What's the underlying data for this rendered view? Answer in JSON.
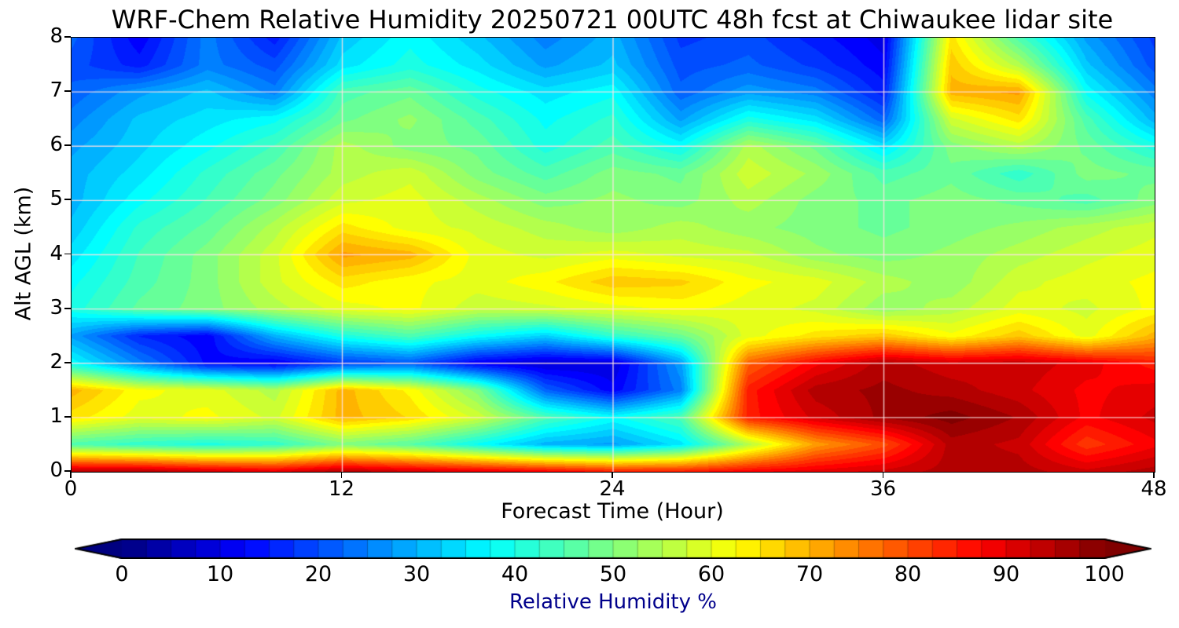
{
  "chart_data": {
    "type": "heatmap",
    "title": "WRF-Chem Relative Humidity 20250721 00UTC 48h fcst at Chiwaukee lidar site",
    "xlabel": "Forecast Time (Hour)",
    "ylabel": "Alt AGL (km)",
    "xlim": [
      0,
      48
    ],
    "ylim": [
      0,
      8
    ],
    "x_ticks": [
      0,
      12,
      24,
      36,
      48
    ],
    "y_ticks": [
      0,
      1,
      2,
      3,
      4,
      5,
      6,
      7,
      8
    ],
    "grid": true,
    "grid_color": "#ffdddd",
    "colormap": "jet",
    "contour_level_step": 2.5,
    "colorbar": {
      "label": "Relative Humidity %",
      "label_color": "#00008b",
      "ticks": [
        0,
        10,
        20,
        30,
        40,
        50,
        60,
        70,
        80,
        90,
        100
      ],
      "min": 0,
      "max": 100,
      "extend": "both"
    },
    "x": [
      0,
      3,
      6,
      9,
      12,
      15,
      18,
      21,
      24,
      27,
      30,
      33,
      36,
      39,
      42,
      45,
      48
    ],
    "y": [
      0,
      0.5,
      1,
      1.5,
      2,
      2.5,
      3,
      3.5,
      4,
      4.5,
      5,
      5.5,
      6,
      6.5,
      7,
      7.5,
      8
    ],
    "values_note": "rows correspond to y (bottom row first), columns to x; units = relative humidity percent",
    "values": [
      [
        95,
        95,
        92,
        90,
        95,
        92,
        90,
        88,
        85,
        85,
        88,
        90,
        92,
        95,
        95,
        92,
        95
      ],
      [
        45,
        42,
        40,
        42,
        50,
        46,
        38,
        30,
        28,
        35,
        55,
        72,
        80,
        95,
        93,
        82,
        88
      ],
      [
        65,
        60,
        62,
        58,
        70,
        66,
        58,
        45,
        38,
        45,
        85,
        92,
        97,
        100,
        96,
        88,
        92
      ],
      [
        70,
        62,
        60,
        55,
        70,
        63,
        50,
        22,
        12,
        25,
        85,
        95,
        97,
        95,
        92,
        88,
        90
      ],
      [
        38,
        25,
        13,
        11,
        18,
        21,
        11,
        8,
        9,
        28,
        78,
        88,
        95,
        92,
        93,
        90,
        85
      ],
      [
        28,
        16,
        12,
        30,
        40,
        45,
        38,
        33,
        42,
        48,
        60,
        65,
        68,
        62,
        68,
        60,
        70
      ],
      [
        40,
        47,
        50,
        55,
        60,
        62,
        57,
        58,
        60,
        62,
        60,
        58,
        52,
        55,
        60,
        58,
        62
      ],
      [
        38,
        45,
        50,
        58,
        65,
        62,
        60,
        63,
        68,
        67,
        62,
        60,
        55,
        52,
        58,
        60,
        62
      ],
      [
        35,
        44,
        50,
        58,
        72,
        70,
        60,
        58,
        60,
        58,
        57,
        52,
        50,
        52,
        55,
        58,
        60
      ],
      [
        32,
        42,
        47,
        55,
        65,
        60,
        58,
        55,
        52,
        55,
        52,
        50,
        48,
        50,
        52,
        55,
        58
      ],
      [
        30,
        38,
        44,
        50,
        58,
        60,
        55,
        50,
        52,
        50,
        55,
        50,
        48,
        50,
        48,
        45,
        50
      ],
      [
        30,
        35,
        42,
        48,
        55,
        58,
        50,
        45,
        50,
        48,
        58,
        53,
        45,
        48,
        42,
        50,
        48
      ],
      [
        28,
        33,
        38,
        44,
        55,
        50,
        48,
        40,
        45,
        38,
        55,
        48,
        35,
        50,
        55,
        48,
        40
      ],
      [
        25,
        32,
        35,
        38,
        48,
        52,
        45,
        38,
        42,
        28,
        40,
        35,
        22,
        58,
        65,
        45,
        30
      ],
      [
        22,
        28,
        32,
        25,
        45,
        48,
        40,
        35,
        38,
        22,
        28,
        25,
        15,
        70,
        72,
        38,
        25
      ],
      [
        20,
        15,
        25,
        20,
        35,
        40,
        35,
        28,
        32,
        20,
        22,
        18,
        12,
        68,
        55,
        32,
        20
      ],
      [
        22,
        12,
        25,
        15,
        32,
        38,
        32,
        25,
        30,
        18,
        20,
        15,
        10,
        65,
        45,
        28,
        18
      ]
    ]
  }
}
